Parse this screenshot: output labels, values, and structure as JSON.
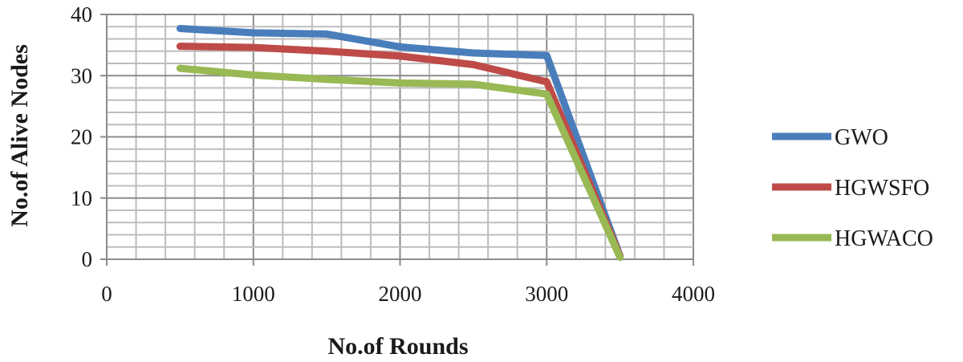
{
  "chart_data": {
    "type": "line",
    "title": "",
    "xlabel": "No.of Rounds",
    "ylabel": "No.of Alive Nodes",
    "xlim": [
      0,
      4000
    ],
    "ylim": [
      0,
      40
    ],
    "x_ticks": [
      0,
      1000,
      2000,
      3000,
      4000
    ],
    "y_ticks": [
      0,
      10,
      20,
      30,
      40
    ],
    "x_tick_labels": [
      "0",
      "1000",
      "2000",
      "3000",
      "4000"
    ],
    "y_tick_labels": [
      "0",
      "10",
      "20",
      "30",
      "40"
    ],
    "grid": true,
    "legend_position": "right",
    "series": [
      {
        "name": "GWO",
        "color": "#4a7ebb",
        "x": [
          500,
          1000,
          1500,
          2000,
          2500,
          3000,
          3500
        ],
        "y": [
          37.7,
          37.0,
          36.8,
          34.7,
          33.7,
          33.3,
          0.5
        ]
      },
      {
        "name": "HGWSFO",
        "color": "#be4b48",
        "x": [
          500,
          1000,
          1500,
          2000,
          2500,
          3000,
          3500
        ],
        "y": [
          34.8,
          34.6,
          34.0,
          33.2,
          31.8,
          29.0,
          0.5
        ]
      },
      {
        "name": "HGWACO",
        "color": "#98b954",
        "x": [
          500,
          1000,
          1500,
          2000,
          2500,
          3000,
          3500
        ],
        "y": [
          31.2,
          30.1,
          29.4,
          28.8,
          28.6,
          27.0,
          0.3
        ]
      }
    ]
  }
}
